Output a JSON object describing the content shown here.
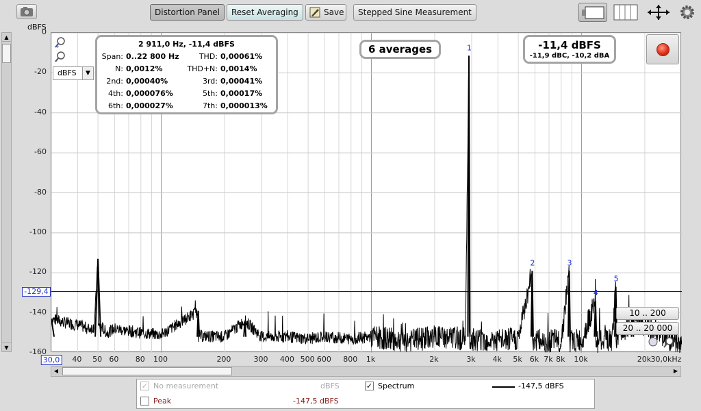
{
  "toolbar": {
    "distortion_panel": "Distortion Panel",
    "reset_averaging": "Reset Averaging",
    "save": "Save",
    "stepped_sine": "Stepped Sine Measurement"
  },
  "axis": {
    "y_unit": "dBFS",
    "y_ticks": [
      "0",
      "-20",
      "-40",
      "-60",
      "-80",
      "-100",
      "-120",
      "-140",
      "-160"
    ],
    "x_ticks": [
      "30,0",
      "40",
      "50",
      "60",
      "80",
      "100",
      "200",
      "300",
      "400",
      "500",
      "600",
      "800",
      "1k",
      "2k",
      "3k",
      "4k",
      "5k",
      "6k",
      "7k",
      "8k",
      "10k",
      "20k",
      "30,0kHz"
    ],
    "unit_select": "dBFS",
    "cursor_level": "-129,4"
  },
  "info": {
    "header": "2 911,0 Hz, -11,4 dBFS",
    "span_label": "Span:",
    "span": "0..22 800 Hz",
    "thd_label": "THD:",
    "thd": "0,00061%",
    "n_label": "N:",
    "n": "0,0012%",
    "thdn_label": "THD+N:",
    "thdn": "0,0014%",
    "h2_label": "2nd:",
    "h2": "0,00040%",
    "h3_label": "3rd:",
    "h3": "0,00041%",
    "h4_label": "4th:",
    "h4": "0,000076%",
    "h5_label": "5th:",
    "h5": "0,00017%",
    "h6_label": "6th:",
    "h6": "0,000027%",
    "h7_label": "7th:",
    "h7": "0,000013%"
  },
  "averages": "6 averages",
  "level": {
    "main": "-11,4 dBFS",
    "sub": "-11,9 dBC, -10,2 dBA"
  },
  "harmonic_labels": [
    "1",
    "2",
    "3",
    "4",
    "5",
    "6",
    "7"
  ],
  "range_buttons": [
    "10 .. 200",
    "20 .. 20 000"
  ],
  "legend": {
    "no_measurement": "No measurement",
    "no_measurement_unit": "dBFS",
    "spectrum": "Spectrum",
    "spectrum_value": "-147,5 dBFS",
    "peak": "Peak",
    "peak_value": "-147,5 dBFS"
  },
  "colors": {
    "marker_blue": "#2233cc",
    "peak_red": "#8b1a1a",
    "trace": "#000000",
    "grid": "#c8c8c8"
  },
  "chart_data": {
    "type": "line",
    "xscale": "log",
    "xlim": [
      30,
      30000
    ],
    "ylim": [
      -160,
      0
    ],
    "ylabel": "dBFS",
    "series": [
      {
        "name": "Spectrum",
        "x": [
          30,
          35,
          40,
          45,
          48,
          50,
          52,
          55,
          60,
          80,
          100,
          150,
          200,
          250,
          300,
          400,
          500,
          600,
          800,
          1000,
          1500,
          2000,
          2800,
          2911,
          3000,
          4000,
          5000,
          5822,
          6500,
          8000,
          8733,
          10000,
          11644,
          14000,
          14555,
          17466,
          20000,
          30000
        ],
        "y": [
          -143,
          -145,
          -146,
          -148,
          -147,
          -113,
          -147,
          -150,
          -148,
          -150,
          -151,
          -139,
          -152,
          -144,
          -152,
          -152,
          -153,
          -152,
          -153,
          -152,
          -154,
          -152,
          -153,
          -11.4,
          -153,
          -154,
          -153,
          -119,
          -154,
          -154,
          -119,
          -154,
          -134,
          -154,
          -127,
          -144,
          -147,
          -156
        ]
      }
    ],
    "harmonics": [
      {
        "label": "1",
        "x": 2911,
        "y": -11.4
      },
      {
        "label": "2",
        "x": 5822,
        "y": -119
      },
      {
        "label": "3",
        "x": 8733,
        "y": -119
      },
      {
        "label": "4",
        "x": 11644,
        "y": -134
      },
      {
        "label": "5",
        "x": 14555,
        "y": -127
      },
      {
        "label": "6",
        "x": 17466,
        "y": -144
      },
      {
        "label": "7",
        "x": 20377,
        "y": -151
      }
    ],
    "grid": true
  }
}
